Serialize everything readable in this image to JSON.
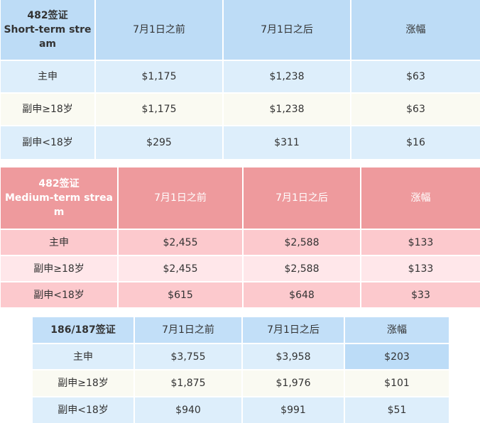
{
  "short_term": {
    "visa_label": "482签证",
    "stream_label": "Short-term stream",
    "columns": [
      "7月1日之前",
      "7月1日之后",
      "涨幅"
    ],
    "rows": [
      {
        "label": "主申",
        "before": "$1,175",
        "after": "$1,238",
        "increase": "$63"
      },
      {
        "label": "副申≥18岁",
        "before": "$1,175",
        "after": "$1,238",
        "increase": "$63"
      },
      {
        "label": "副申<18岁",
        "before": "$295",
        "after": "$311",
        "increase": "$16"
      }
    ]
  },
  "medium_term": {
    "visa_label": "482签证",
    "stream_label": "Medium-term stream",
    "columns": [
      "7月1日之前",
      "7月1日之后",
      "涨幅"
    ],
    "rows": [
      {
        "label": "主申",
        "before": "$2,455",
        "after": "$2,588",
        "increase": "$133"
      },
      {
        "label": "副申≥18岁",
        "before": "$2,455",
        "after": "$2,588",
        "increase": "$133"
      },
      {
        "label": "副申<18岁",
        "before": "$615",
        "after": "$648",
        "increase": "$33"
      }
    ]
  },
  "visa_186_187": {
    "visa_label": "186/187签证",
    "columns": [
      "7月1日之前",
      "7月1日之后",
      "涨幅"
    ],
    "rows": [
      {
        "label": "主申",
        "before": "$3,755",
        "after": "$3,958",
        "increase": "$203"
      },
      {
        "label": "副申≥18岁",
        "before": "$1,875",
        "after": "$1,976",
        "increase": "$101"
      },
      {
        "label": "副申<18岁",
        "before": "$940",
        "after": "$991",
        "increase": "$51"
      }
    ]
  },
  "colors": {
    "blue_header": "#bddcf6",
    "blue_row": "#ddeefb",
    "cream_row": "#fafaf2",
    "pink_header": "#ee9a9d",
    "pink_row": "#fcc9cd",
    "pink_light_row": "#ffe7ea"
  }
}
